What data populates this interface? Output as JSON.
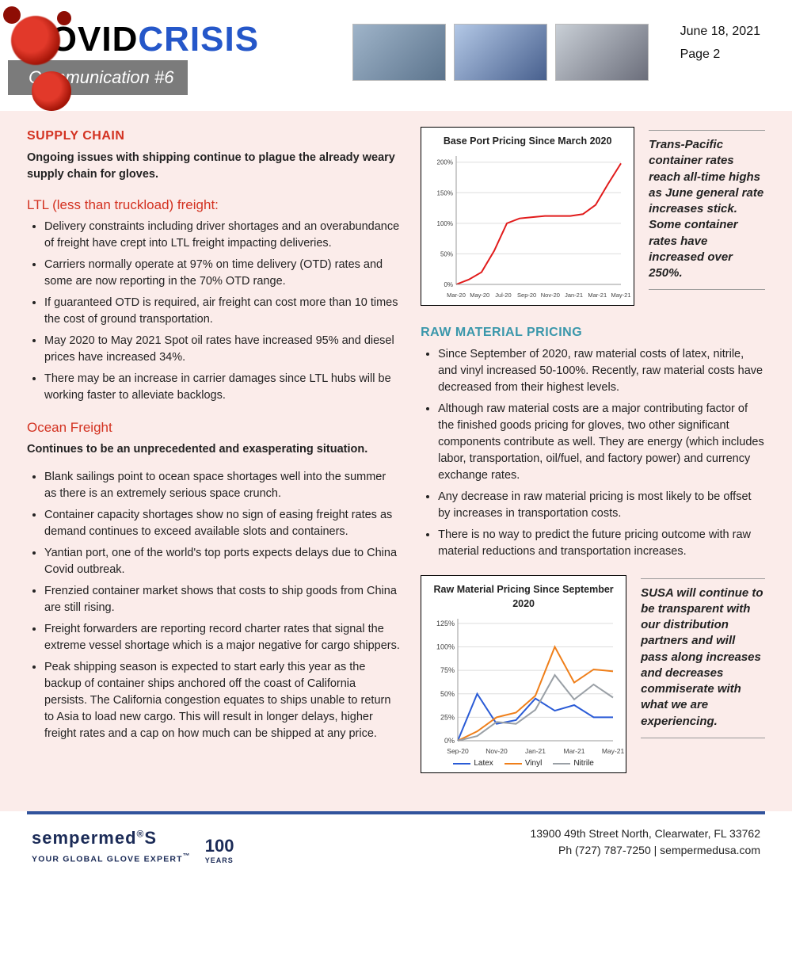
{
  "header": {
    "title_black": "COVID",
    "title_blue": "CRISIS",
    "subtitle": "Communication #6",
    "date": "June 18, 2021",
    "page": "Page 2"
  },
  "supply_chain": {
    "heading": "SUPPLY CHAIN",
    "intro": "Ongoing issues with shipping continue to plague the already weary supply chain for gloves.",
    "ltl_heading": "LTL (less than truckload) freight:",
    "ltl_bullets": [
      "Delivery constraints including driver shortages and an overabundance of freight have crept into LTL freight impacting deliveries.",
      "Carriers normally operate at 97% on time delivery (OTD) rates and some are now reporting in the 70% OTD range.",
      "If guaranteed OTD is required, air freight can cost more than 10 times the cost of ground transportation.",
      "May 2020 to May 2021 Spot oil rates have increased 95% and diesel prices have increased 34%.",
      "There may be an increase in carrier damages since LTL hubs will be working faster to alleviate backlogs."
    ],
    "ocean_heading": "Ocean Freight",
    "ocean_intro": "Continues to be an unprecedented and exasperating situation.",
    "ocean_bullets": [
      "Blank sailings point to ocean space shortages well into the summer as there is an extremely serious space crunch.",
      "Container capacity shortages show no sign of easing freight rates as demand continues to exceed available slots and containers.",
      "Yantian port, one of the world's top ports expects delays due to China Covid outbreak.",
      "Frenzied container market shows that costs to ship goods from China are still rising.",
      "Freight forwarders are reporting record charter rates that signal the extreme vessel shortage which is a major negative for cargo shippers.",
      "Peak shipping season is expected to start early this year as the backup of container ships anchored off the coast of California persists. The California congestion equates to ships unable to return to Asia to load new cargo. This will result in longer delays, higher freight rates and a cap on how much can be shipped at any price."
    ]
  },
  "base_port_chart": {
    "type": "line",
    "title": "Base Port Pricing Since March 2020",
    "x_labels": [
      "Mar-20",
      "May-20",
      "Jul-20",
      "Sep-20",
      "Nov-20",
      "Jan-21",
      "Mar-21",
      "May-21"
    ],
    "y_labels": [
      "0%",
      "50%",
      "100%",
      "150%",
      "200%"
    ],
    "ylim": [
      0,
      210
    ],
    "line_color": "#e11b1b",
    "line_width": 2,
    "grid_color": "#dddddd",
    "background_color": "#ffffff",
    "tick_fontsize": 8,
    "title_fontsize": 12,
    "values": [
      0,
      8,
      20,
      55,
      100,
      108,
      110,
      112,
      112,
      112,
      115,
      130,
      165,
      198
    ]
  },
  "base_port_caption": "Trans-Pacific container rates reach all-time highs as June general rate increases stick. Some container rates have increased over 250%.",
  "raw_material": {
    "heading": "RAW MATERIAL PRICING",
    "bullets": [
      "Since September of 2020, raw material costs of latex, nitrile, and vinyl increased 50-100%. Recently, raw material costs have decreased from their highest levels.",
      "Although raw material costs are a major contributing factor of the finished goods pricing for gloves, two other significant components contribute as well. They are energy (which includes labor, transportation, oil/fuel, and factory power) and currency exchange rates.",
      "Any decrease in raw material pricing is most likely to be offset by increases in transportation costs.",
      "There is no way to predict the future pricing outcome with raw material reductions and transportation increases."
    ]
  },
  "raw_chart": {
    "type": "line",
    "title": "Raw Material Pricing Since September 2020",
    "x_labels": [
      "Sep-20",
      "Nov-20",
      "Jan-21",
      "Mar-21",
      "May-21"
    ],
    "y_labels": [
      "0%",
      "25%",
      "50%",
      "75%",
      "100%",
      "125%"
    ],
    "ylim": [
      0,
      130
    ],
    "grid_color": "#dddddd",
    "background_color": "#ffffff",
    "tick_fontsize": 9,
    "title_fontsize": 12,
    "line_width": 2,
    "series": [
      {
        "name": "Latex",
        "color": "#2a5bd6",
        "values": [
          0,
          50,
          18,
          22,
          45,
          32,
          38,
          25,
          25
        ]
      },
      {
        "name": "Vinyl",
        "color": "#ef7f1a",
        "values": [
          0,
          10,
          25,
          30,
          48,
          100,
          62,
          76,
          74
        ]
      },
      {
        "name": "Nitrile",
        "color": "#9aa0a6",
        "values": [
          0,
          5,
          20,
          18,
          33,
          70,
          44,
          60,
          46
        ]
      }
    ]
  },
  "raw_caption": "SUSA will continue to be transparent with our distribution partners and will pass along increases and decreases commiserate with what we are experiencing.",
  "footer": {
    "logo_main": "sempermed",
    "logo_reg": "®",
    "logo_s": "S",
    "logo_tagline": "YOUR GLOBAL GLOVE EXPERT",
    "logo_tm": "™",
    "hundred": "100",
    "years": "YEARS",
    "addr1": "13900 49th Street North, Clearwater, FL 33762",
    "addr2": "Ph (727) 787-7250  |  sempermedusa.com"
  },
  "colors": {
    "accent_red": "#d33221",
    "brand_blue": "#2557c9",
    "body_bg": "#fbecea",
    "rule_blue": "#31539c"
  }
}
